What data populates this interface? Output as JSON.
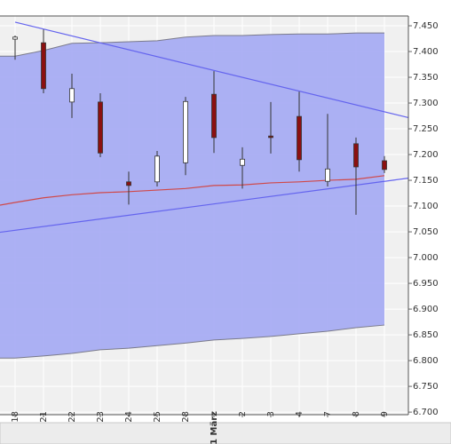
{
  "chart_data": {
    "type": "candlestick",
    "categories": [
      "18",
      "21",
      "22",
      "23",
      "24",
      "25",
      "28",
      "1 März",
      "2",
      "3",
      "4",
      "7",
      "8",
      "9"
    ],
    "open": [
      7.424,
      7.417,
      7.302,
      7.302,
      7.147,
      7.147,
      7.184,
      7.317,
      7.179,
      7.236,
      7.274,
      7.148,
      7.221,
      7.188
    ],
    "high": [
      7.431,
      7.443,
      7.357,
      7.319,
      7.167,
      7.207,
      7.312,
      7.362,
      7.214,
      7.302,
      7.322,
      7.279,
      7.233,
      7.197
    ],
    "low": [
      7.384,
      7.319,
      7.271,
      7.195,
      7.103,
      7.138,
      7.16,
      7.203,
      7.134,
      7.202,
      7.167,
      7.138,
      7.083,
      7.164
    ],
    "close": [
      7.428,
      7.328,
      7.328,
      7.203,
      7.14,
      7.197,
      7.303,
      7.233,
      7.191,
      7.233,
      7.19,
      7.172,
      7.176,
      7.171
    ],
    "up_color": "#ffffff",
    "down_color": "#8b1010",
    "band": {
      "color": "#a3a9f3",
      "edge_color": "#7a7a8a",
      "upper": [
        7.391,
        7.402,
        7.416,
        7.417,
        7.419,
        7.421,
        7.428,
        7.431,
        7.431,
        7.433,
        7.434,
        7.434,
        7.436,
        7.436
      ],
      "lower": [
        6.805,
        6.809,
        6.814,
        6.821,
        6.824,
        6.829,
        6.834,
        6.84,
        6.843,
        6.847,
        6.852,
        6.857,
        6.864,
        6.869
      ]
    },
    "moving_average": {
      "color": "#d04848",
      "values": [
        7.107,
        7.116,
        7.122,
        7.126,
        7.128,
        7.131,
        7.134,
        7.14,
        7.141,
        7.145,
        7.147,
        7.15,
        7.152,
        7.159
      ]
    },
    "trendlines": {
      "color": "#6464ee",
      "lines": [
        [
          7.457,
          7.283
        ],
        [
          7.053,
          7.148
        ]
      ]
    },
    "ylim": [
      6.695,
      7.469
    ],
    "yticks": [
      {
        "value": 6.7,
        "label": "6.700"
      },
      {
        "value": 6.75,
        "label": "6.750"
      },
      {
        "value": 6.8,
        "label": "6.800"
      },
      {
        "value": 6.85,
        "label": "6.850"
      },
      {
        "value": 6.9,
        "label": "6.900"
      },
      {
        "value": 6.95,
        "label": "6.950"
      },
      {
        "value": 7.0,
        "label": "7.000"
      },
      {
        "value": 7.05,
        "label": "7.050"
      },
      {
        "value": 7.1,
        "label": "7.100"
      },
      {
        "value": 7.15,
        "label": "7.150"
      },
      {
        "value": 7.2,
        "label": "7.200"
      },
      {
        "value": 7.25,
        "label": "7.250"
      },
      {
        "value": 7.3,
        "label": "7.300"
      },
      {
        "value": 7.35,
        "label": "7.350"
      },
      {
        "value": 7.4,
        "label": "7.400"
      },
      {
        "value": 7.45,
        "label": "7.450"
      }
    ],
    "grid": true
  }
}
